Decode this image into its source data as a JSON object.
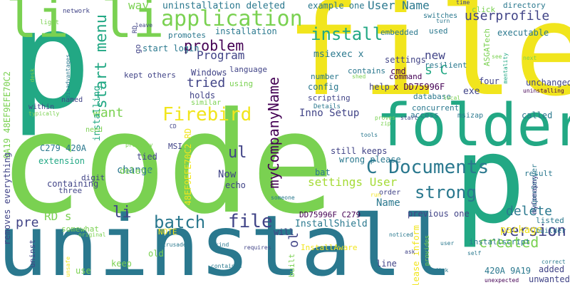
{
  "words": {
    "code": "code",
    "uninstall": "uninstall",
    "file": "file",
    "folder": "folder",
    "p_big": "p",
    "p_mid": "p",
    "lili": "li li",
    "application": "application",
    "install": "install",
    "start_menu": "start menu",
    "firebird": "Firebird",
    "c_documents": "C Documents",
    "strong": "strong",
    "batch": "batch",
    "file2": "file",
    "version": "version",
    "delete": "delete",
    "created": "created",
    "uninstallation_deleted": "uninstallation deleted",
    "example_one": "example one",
    "user_name": "User Name",
    "userprofile": "userprofile",
    "problem": "problem",
    "program": "Program",
    "tried": "tried",
    "installing": "installing",
    "want": "want",
    "mycompanyname": "myCompanyName",
    "settings_user": "settings User",
    "ul": "ul",
    "change": "change",
    "now": "Now",
    "inno_setup": "Inno Setup",
    "installshield": "InstallShield",
    "package": "package",
    "executable": "executable",
    "unchanged": "unchanged",
    "msiexec_x": "msiexec x",
    "s_c": "s C",
    "new": "new",
    "cmd": "cmd",
    "exe": "exe",
    "four": "four",
    "config": "config",
    "help": "help",
    "x_dd": "x DD75996F",
    "asgatech": "ASGATech",
    "called": "called",
    "still_keeps": "still keeps",
    "wrong_please": "wrong please",
    "previous_one": "previous one",
    "dd_c279": "DD75996F C279",
    "name": "Name",
    "ol": "ol",
    "please_inform": "please inform",
    "installscript": "installscript",
    "a420": "420A 9A19",
    "added": "added",
    "unwanted": "unwanted",
    "li2": "li",
    "pre": "pre",
    "rd_s": "RD s",
    "hex1": "9A19 48EF9EFE70C2",
    "c279": "C279 420A",
    "containing": "containing",
    "extension": "extension",
    "removes_everything": "removes everything",
    "digit": "digit",
    "three": "three",
    "uninst": "uninst",
    "somewhat": "somewhat",
    "deleted2": "deleted",
    "tied": "tied",
    "echo": "echo",
    "bat": "bat",
    "msi": "MSI",
    "note": "NOTE",
    "old": "old",
    "keep": "keep",
    "use": "use",
    "will": "will",
    "installaware": "InstallAware",
    "built": "built",
    "line": "line",
    "holds": "holds",
    "windows": "Windows",
    "language": "language",
    "using": "using",
    "kept_others": "kept others",
    "start_login": "start login",
    "promotes": "promotes",
    "installation": "installation",
    "way": "way",
    "network": "network",
    "light": "light",
    "go": "go",
    "rd": "RD",
    "settings": "settings",
    "contains": "contains",
    "number": "number",
    "scripting": "scripting",
    "details": "Details",
    "embedded": "embedded",
    "used": "used",
    "resilient": "resilient",
    "command": "command",
    "database": "database",
    "concurrent": "concurrent",
    "access": "access",
    "msizap": "msizap",
    "superserver": "SuperServer",
    "result": "result",
    "mycomapny": "myComapny",
    "listed": "listed",
    "builder": "builder",
    "click": "click",
    "directory": "directory",
    "switches": "switches",
    "turn": "turn",
    "time": "time",
    "mentality": "mentality",
    "see": "see",
    "next": "next",
    "uninstalling": "uninstalling",
    "correct": "correct",
    "unexpected": "unexpected",
    "self": "self",
    "user": "user",
    "disk": "disk",
    "ask": "ask",
    "requires": "requires",
    "noticed": "noticed",
    "contained": "contained",
    "crusade": "crusade",
    "kind": "kind",
    "someone": "someone",
    "order": "order",
    "run": "run",
    "provides": "provides",
    "cd": "CD",
    "zip": "zip",
    "proves": "proves",
    "tools": "tools",
    "similar": "similar",
    "probably": "probably",
    "need": "need",
    "within": "within",
    "typically": "typically",
    "named": "named",
    "disadvantages": "disadvantages",
    "desk": "desk",
    "leave": "leave",
    "shed": "shed",
    "local": "local",
    "original": "original",
    "unsafe": "unsafe",
    "start2": "start",
    "hex2": "48EF9EFE70C2 RD"
  }
}
